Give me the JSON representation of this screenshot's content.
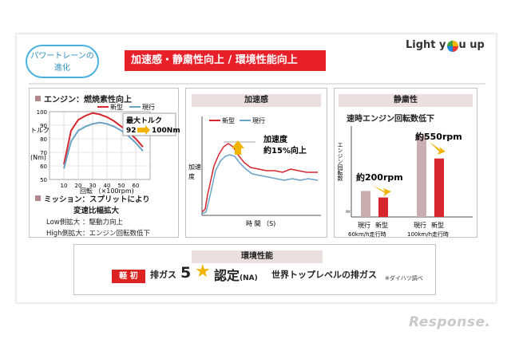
{
  "header": {
    "pill_line1": "パワートレーンの",
    "pill_line2": "進化",
    "headline": "加速感・静粛性向上 / 環境性能向上",
    "logo_before": "Light y",
    "logo_after": "u up"
  },
  "engine": {
    "title": "エンジン：燃焼素性向上",
    "legend_new": "新型",
    "legend_current": "現行",
    "ylabel_line1": "トルク",
    "ylabel_line2": "(Nm)",
    "xlabel": "回転 （×100rpm)",
    "max_torque_label": "最大トルク",
    "max_torque_from": "92",
    "max_torque_to": "100Nm"
  },
  "mission": {
    "line1": "ミッション：スプリットにより",
    "line2": "変速比幅拡大",
    "line3": "Low側拡大 ：駆動力向上",
    "line4": "High側拡大：エンジン回転数低下"
  },
  "accel": {
    "head": "加速感",
    "legend_new": "新型",
    "legend_current": "現行",
    "annotation_line1": "加速度",
    "annotation_line2": "約15%向上",
    "ylabel_line1": "加速",
    "ylabel_line2": "度",
    "xlabel": "時 間 （S)"
  },
  "quiet": {
    "head": "静粛性",
    "subtitle": "速時エンジン回転数低下",
    "ylabel": "エンジン回転数",
    "label_60": "約200rpm",
    "label_100": "約550rpm",
    "cat_current": "現行",
    "cat_new": "新型",
    "group1": "60km/h走行時",
    "group2": "100km/h走行時"
  },
  "env": {
    "head": "環境性能",
    "badge": "軽 初",
    "gas": "排ガス",
    "five": "5",
    "nintei": "認定",
    "na": "(NA)",
    "world": "世界トップレベルの排ガス",
    "note": "※ダイハツ調べ"
  },
  "watermark": "Response.",
  "colors": {
    "new": "#d7262e",
    "current": "#6aa3c8",
    "bar_current": "#c9aeb2",
    "accent": "#e8202a",
    "star": "#f2b300"
  },
  "chart_data": [
    {
      "type": "line",
      "title": "エンジン：燃焼素性向上",
      "xlabel": "回転 （×100rpm)",
      "ylabel": "トルク (Nm)",
      "xlim": [
        0,
        70
      ],
      "ylim": [
        50,
        100
      ],
      "xticks": [
        10,
        20,
        30,
        40,
        50,
        60
      ],
      "yticks": [
        50,
        60,
        70,
        80,
        90,
        100
      ],
      "grid": true,
      "series": [
        {
          "name": "新型",
          "x": [
            10,
            15,
            20,
            25,
            30,
            35,
            40,
            45,
            50,
            55,
            60,
            65
          ],
          "y": [
            61,
            86,
            94,
            97,
            99,
            98,
            96,
            93,
            89,
            85,
            80,
            74
          ]
        },
        {
          "name": "現行",
          "x": [
            10,
            15,
            20,
            25,
            30,
            35,
            40,
            45,
            50,
            55,
            60,
            65
          ],
          "y": [
            58,
            78,
            86,
            89,
            91,
            92,
            91,
            89,
            86,
            82,
            77,
            71
          ]
        }
      ]
    },
    {
      "type": "bar",
      "title": "静粛性",
      "categories": [
        "60km/h走行時",
        "100km/h走行時"
      ],
      "series": [
        {
          "name": "現行",
          "values": [
            32,
            100
          ]
        },
        {
          "name": "新型",
          "values": [
            24,
            72
          ]
        }
      ],
      "annotations": [
        "約200rpm",
        "約550rpm"
      ]
    }
  ]
}
